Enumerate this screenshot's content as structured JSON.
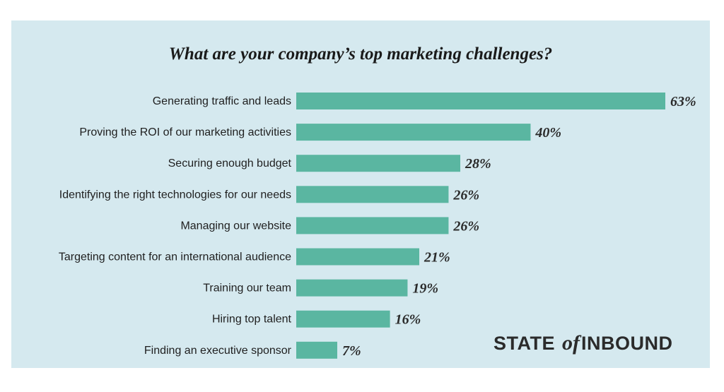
{
  "chart_data": {
    "type": "bar",
    "orientation": "horizontal",
    "title": "What are your company’s top marketing challenges?",
    "categories": [
      "Generating traffic and leads",
      "Proving the ROI of our marketing activities",
      "Securing enough budget",
      "Identifying the right technologies for our needs",
      "Managing our website",
      "Targeting content for an international audience",
      "Training our team",
      "Hiring top talent",
      "Finding an executive sponsor"
    ],
    "values": [
      63,
      40,
      28,
      26,
      26,
      21,
      19,
      16,
      7
    ],
    "value_labels": [
      "63%",
      "40%",
      "28%",
      "26%",
      "26%",
      "21%",
      "19%",
      "16%",
      "7%"
    ],
    "xlim": [
      0,
      63
    ],
    "grid": false,
    "legend": "none",
    "bar_color": "#5ab6a1",
    "background_color": "#d5e9ef"
  },
  "branding": {
    "state": "STATE",
    "of": "of",
    "inbound": "INBOUND"
  }
}
